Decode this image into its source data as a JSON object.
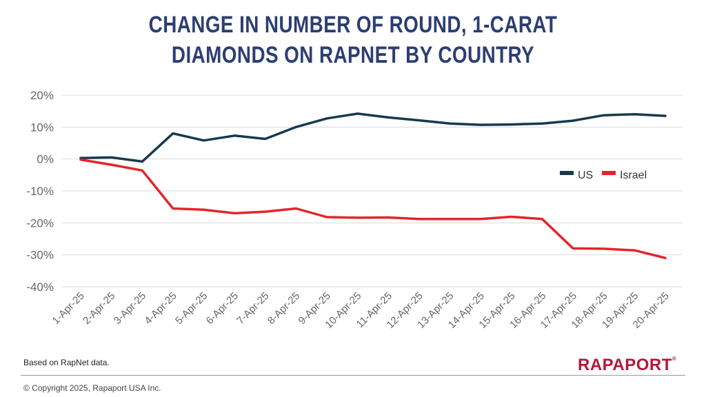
{
  "title_lines": [
    "CHANGE IN NUMBER OF ROUND, 1-CARAT",
    "DIAMONDS ON RAPNET BY COUNTRY"
  ],
  "source": "Based on RapNet data.",
  "copyright": "© Copyright 2025, Rapaport USA Inc.",
  "logo": "RAPAPORT",
  "chart_data": {
    "type": "line",
    "title": "CHANGE IN NUMBER OF ROUND, 1-CARAT DIAMONDS ON RAPNET BY COUNTRY",
    "x": [
      "1-Apr-25",
      "2-Apr-25",
      "3-Apr-25",
      "4-Apr-25",
      "5-Apr-25",
      "6-Apr-25",
      "7-Apr-25",
      "8-Apr-25",
      "9-Apr-25",
      "10-Apr-25",
      "11-Apr-25",
      "12-Apr-25",
      "13-Apr-25",
      "14-Apr-25",
      "15-Apr-25",
      "16-Apr-25",
      "17-Apr-25",
      "18-Apr-25",
      "19-Apr-25",
      "20-Apr-25"
    ],
    "y_ticks": [
      "20%",
      "10%",
      "0%",
      "-10%",
      "-20%",
      "-30%",
      "-40%"
    ],
    "y_tick_values": [
      20,
      10,
      0,
      -10,
      -20,
      -30,
      -40
    ],
    "ylim": [
      -40,
      20
    ],
    "grid": true,
    "legend_position": "right",
    "series": [
      {
        "name": "US",
        "color": "#163a4e",
        "values": [
          0.3,
          0.5,
          -0.8,
          8.0,
          5.8,
          7.3,
          6.3,
          10.0,
          12.7,
          14.2,
          13.0,
          12.1,
          11.1,
          10.7,
          10.8,
          11.1,
          12.0,
          13.7,
          14.0,
          13.5
        ]
      },
      {
        "name": "Israel",
        "color": "#e3242b",
        "values": [
          -0.2,
          -1.8,
          -3.6,
          -15.5,
          -15.9,
          -17.0,
          -16.5,
          -15.5,
          -18.2,
          -18.4,
          -18.3,
          -18.8,
          -18.8,
          -18.8,
          -18.1,
          -18.8,
          -28.0,
          -28.1,
          -28.6,
          -31.0
        ]
      }
    ]
  }
}
